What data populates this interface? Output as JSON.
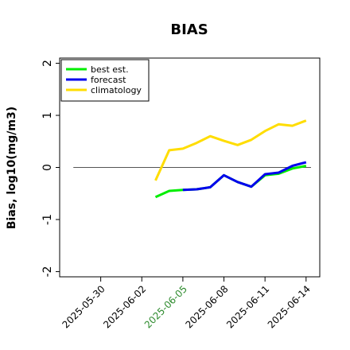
{
  "chart_data": {
    "type": "line",
    "title": "BIAS",
    "ylabel": "Bias, log10(mg/m3)",
    "xlabel": "",
    "ylim": [
      -2.1,
      2.1
    ],
    "xlim": [
      "2025-05-27",
      "2025-06-15"
    ],
    "y_ticks": [
      2,
      1,
      0,
      -1,
      -2
    ],
    "x_ticks": [
      "2025-05-30",
      "2025-06-02",
      "2025-06-05",
      "2025-06-08",
      "2025-06-11",
      "2025-06-14"
    ],
    "highlighted_x_tick": "2025-06-05",
    "highlight_color": "#2e8b2e",
    "zero_line": true,
    "grid": false,
    "legend": {
      "position": "top-left",
      "entries": [
        {
          "label": "best est.",
          "color": "#00ee00"
        },
        {
          "label": "forecast",
          "color": "#0000ee"
        },
        {
          "label": "climatology",
          "color": "#ffdd00"
        }
      ]
    },
    "series": [
      {
        "name": "best est.",
        "color": "#00ee00",
        "x": [
          "2025-06-03",
          "2025-06-04",
          "2025-06-05",
          "2025-06-06",
          "2025-06-07",
          "2025-06-08",
          "2025-06-09",
          "2025-06-10",
          "2025-06-11",
          "2025-06-12",
          "2025-06-13",
          "2025-06-14"
        ],
        "y": [
          -0.57,
          -0.45,
          -0.43,
          -0.42,
          -0.38,
          -0.15,
          -0.28,
          -0.37,
          -0.15,
          -0.12,
          -0.02,
          0.03
        ]
      },
      {
        "name": "forecast",
        "color": "#0000ee",
        "x": [
          "2025-06-05",
          "2025-06-06",
          "2025-06-07",
          "2025-06-08",
          "2025-06-09",
          "2025-06-10",
          "2025-06-11",
          "2025-06-12",
          "2025-06-13",
          "2025-06-14"
        ],
        "y": [
          -0.43,
          -0.42,
          -0.38,
          -0.15,
          -0.28,
          -0.37,
          -0.13,
          -0.1,
          0.03,
          0.1
        ]
      },
      {
        "name": "climatology",
        "color": "#ffdd00",
        "x": [
          "2025-06-03",
          "2025-06-04",
          "2025-06-05",
          "2025-06-06",
          "2025-06-07",
          "2025-06-08",
          "2025-06-09",
          "2025-06-10",
          "2025-06-11",
          "2025-06-12",
          "2025-06-13",
          "2025-06-14"
        ],
        "y": [
          -0.25,
          0.33,
          0.36,
          0.47,
          0.6,
          0.51,
          0.43,
          0.53,
          0.7,
          0.83,
          0.8,
          0.9
        ]
      }
    ]
  }
}
